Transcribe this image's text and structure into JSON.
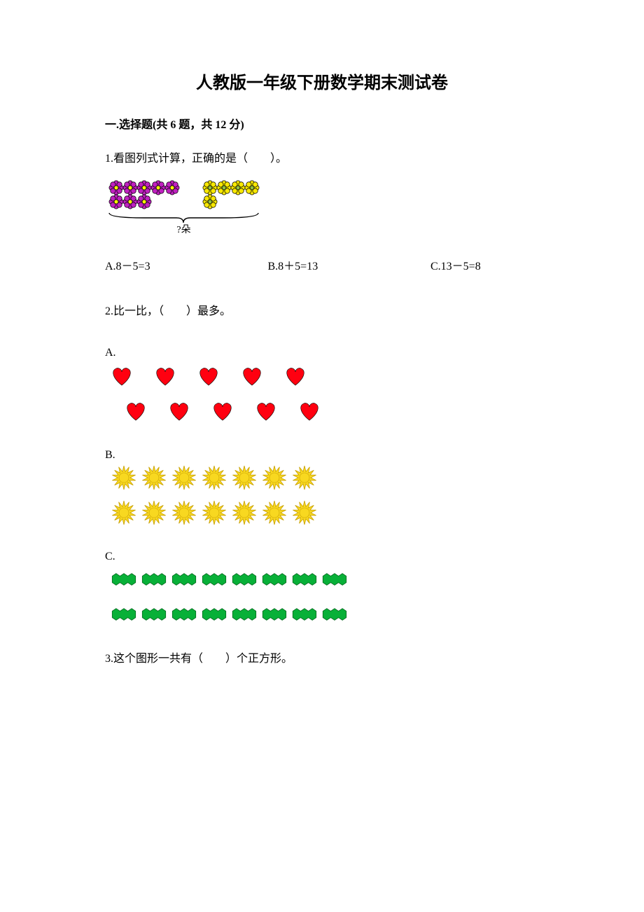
{
  "title": "人教版一年级下册数学期末测试卷",
  "section1": {
    "heading": "一.选择题(共 6 题，共 12 分)",
    "q1": {
      "text": "1.看图列式计算，正确的是（　　）。",
      "bracket_label": "?朵",
      "purple_count": 8,
      "yellow_count": 5,
      "options": {
        "a": "A.8－5=3",
        "b": "B.8＋5=13",
        "c": "C.13－5=8"
      },
      "colors": {
        "purple_petal": "#c020c0",
        "purple_center": "#ffff00",
        "yellow_petal": "#f8e800",
        "yellow_center": "#90c040",
        "outline": "#000000"
      }
    },
    "q2": {
      "text": "2.比一比，（　　）最多。",
      "options": {
        "a": {
          "label": "A.",
          "row1_count": 5,
          "row2_count": 5,
          "shape": "heart",
          "colors": {
            "fill": "#ff0010",
            "outline": "#000000"
          }
        },
        "b": {
          "label": "B.",
          "row1_count": 7,
          "row2_count": 7,
          "shape": "sun",
          "colors": {
            "fill": "#f8d820",
            "outline": "#c8a000"
          }
        },
        "c": {
          "label": "C.",
          "row1_count": 8,
          "row2_count": 8,
          "shape": "leaf",
          "colors": {
            "fill": "#08b038",
            "outline": "#006018"
          }
        }
      }
    },
    "q3": {
      "text": "3.这个图形一共有（　　）个正方形。"
    }
  }
}
